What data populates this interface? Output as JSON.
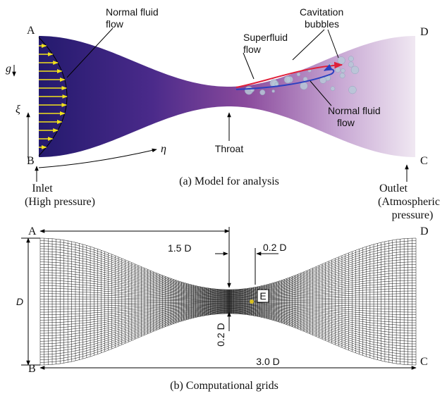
{
  "panel_a": {
    "corner_a": "A",
    "corner_b": "B",
    "corner_c": "C",
    "corner_d": "D",
    "gravity": "g",
    "xi": "ξ",
    "eta": "η",
    "normal_fluid_flow_inlet": [
      "Normal fluid",
      "flow"
    ],
    "superfluid_flow": [
      "Superfluid",
      "flow"
    ],
    "cavitation_bubbles": [
      "Cavitation",
      "bubbles"
    ],
    "normal_fluid_flow_outlet": [
      "Normal fluid",
      "flow"
    ],
    "throat": "Throat",
    "inlet": [
      "Inlet",
      "(High pressure)"
    ],
    "outlet": [
      "Outlet",
      "(Atmospheric",
      "pressure)"
    ],
    "caption": "(a) Model for analysis"
  },
  "panel_b": {
    "corner_a": "A",
    "corner_b": "B",
    "corner_c": "C",
    "corner_d": "D",
    "throat_distance": "1.5 D",
    "point_offset": "0.2 D",
    "height": "D",
    "throat_width": "0.2 D",
    "length": "3.0 D",
    "point": "E",
    "caption": "(b) Computational grids"
  }
}
